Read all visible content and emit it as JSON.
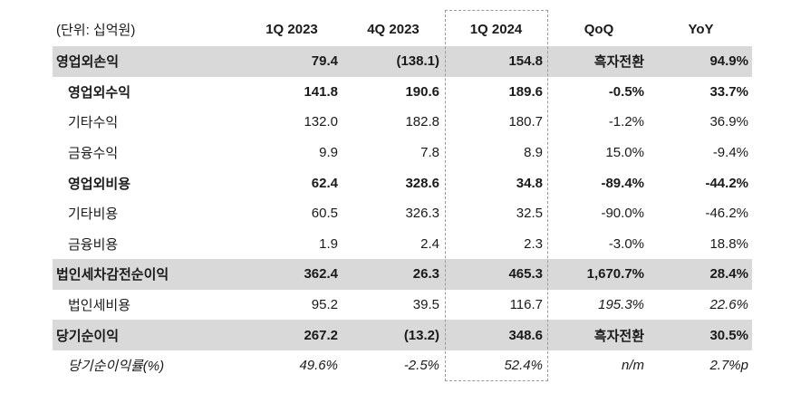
{
  "table": {
    "unit_label": "(단위: 십억원)",
    "columns": [
      "1Q 2023",
      "4Q 2023",
      "1Q 2024",
      "QoQ",
      "YoY"
    ],
    "highlighted_column": "1Q 2024",
    "rows": [
      {
        "label": "영업외손익",
        "level": 0,
        "emphasis": "summary",
        "values": [
          "79.4",
          "(138.1)",
          "154.8",
          "흑자전환",
          "94.9%"
        ],
        "italic_cols": []
      },
      {
        "label": "영업외수익",
        "level": 1,
        "emphasis": "subtotal",
        "values": [
          "141.8",
          "190.6",
          "189.6",
          "-0.5%",
          "33.7%"
        ],
        "italic_cols": []
      },
      {
        "label": "기타수익",
        "level": 1,
        "emphasis": "detail",
        "values": [
          "132.0",
          "182.8",
          "180.7",
          "-1.2%",
          "36.9%"
        ],
        "italic_cols": []
      },
      {
        "label": "금융수익",
        "level": 1,
        "emphasis": "detail",
        "values": [
          "9.9",
          "7.8",
          "8.9",
          "15.0%",
          "-9.4%"
        ],
        "italic_cols": []
      },
      {
        "label": "영업외비용",
        "level": 1,
        "emphasis": "subtotal",
        "values": [
          "62.4",
          "328.6",
          "34.8",
          "-89.4%",
          "-44.2%"
        ],
        "italic_cols": []
      },
      {
        "label": "기타비용",
        "level": 1,
        "emphasis": "detail",
        "values": [
          "60.5",
          "326.3",
          "32.5",
          "-90.0%",
          "-46.2%"
        ],
        "italic_cols": []
      },
      {
        "label": "금융비용",
        "level": 1,
        "emphasis": "detail",
        "values": [
          "1.9",
          "2.4",
          "2.3",
          "-3.0%",
          "18.8%"
        ],
        "italic_cols": []
      },
      {
        "label": "법인세차감전순이익",
        "level": 0,
        "emphasis": "summary",
        "values": [
          "362.4",
          "26.3",
          "465.3",
          "1,670.7%",
          "28.4%"
        ],
        "italic_cols": []
      },
      {
        "label": "법인세비용",
        "level": 1,
        "emphasis": "detail",
        "values": [
          "95.2",
          "39.5",
          "116.7",
          "195.3%",
          "22.6%"
        ],
        "italic_cols": [
          3,
          4
        ]
      },
      {
        "label": "당기순이익",
        "level": 0,
        "emphasis": "summary",
        "values": [
          "267.2",
          "(13.2)",
          "348.6",
          "흑자전환",
          "30.5%"
        ],
        "italic_cols": []
      },
      {
        "label": "당기순이익률(%)",
        "level": 1,
        "emphasis": "ratio",
        "values": [
          "49.6%",
          "-2.5%",
          "52.4%",
          "n/m",
          "2.7%p"
        ],
        "italic_cols": [
          0,
          1,
          2,
          3,
          4
        ]
      }
    ],
    "colors": {
      "summary_row_bg": "#d9d9d9",
      "highlight_border": "#9a9a9a",
      "text": "#1a1a1a"
    }
  }
}
